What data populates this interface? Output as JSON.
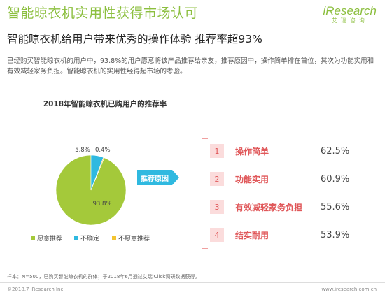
{
  "header": {
    "title": "智能晾衣机实用性获得市场认可",
    "logo_text": "iResearch",
    "logo_sub": "艾瑞咨询"
  },
  "subtitle": "智能晾衣机给用户带来优秀的操作体验 推荐率超93%",
  "description": "已经购买智能晾衣机的用户中，93.8%的用户愿意将该产品推荐给亲友，推荐原因中，操作简单排在首位，其次为功能实用和有效减轻家务负担。智能晾衣机的实用性经得起市场的考验。",
  "chart_data": {
    "type": "pie",
    "title": "2018年智能晾衣机已购用户的推荐率",
    "slices": [
      {
        "name": "愿意推荐",
        "value": 93.8,
        "label": "93.8%",
        "color": "#a4c93a"
      },
      {
        "name": "不确定",
        "value": 5.8,
        "label": "5.8%",
        "color": "#2fb9e0"
      },
      {
        "name": "不愿意推荐",
        "value": 0.4,
        "label": "0.4%",
        "color": "#f4c430"
      }
    ],
    "legend": [
      "愿意推荐",
      "不确定",
      "不愿意推荐"
    ],
    "legend_position": "bottom"
  },
  "reasons": {
    "heading": "推荐原因",
    "items": [
      {
        "rank": "1",
        "label": "操作简单",
        "value": "62.5%"
      },
      {
        "rank": "2",
        "label": "功能实用",
        "value": "60.9%"
      },
      {
        "rank": "3",
        "label": "有效减轻家务负担",
        "value": "55.6%"
      },
      {
        "rank": "4",
        "label": "结实耐用",
        "value": "53.9%"
      }
    ]
  },
  "note": "样本：N=500，已购买智能晾衣机的群体；于2018年6月通过艾瑞iClick调研数据获得。",
  "footer": {
    "copyright": "©2018.7 iResearch Inc",
    "website": "www.iresearch.com.cn"
  }
}
